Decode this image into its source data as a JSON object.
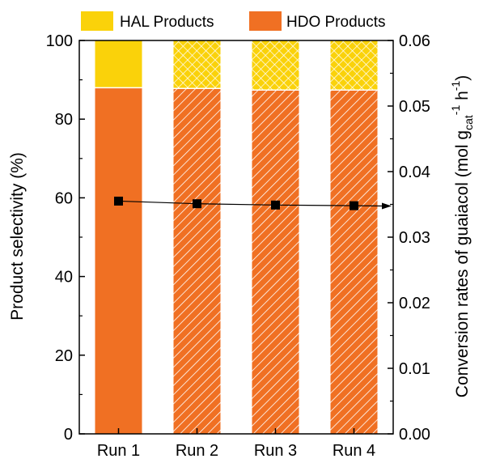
{
  "chart_data": {
    "type": "bar",
    "stacked": true,
    "categories": [
      "Run 1",
      "Run 2",
      "Run 3",
      "Run 4"
    ],
    "series": [
      {
        "name": "HDO Products",
        "values": [
          88,
          87.8,
          87.4,
          87.4
        ],
        "color": "#f07023"
      },
      {
        "name": "HAL Products",
        "values": [
          12,
          12.2,
          12.6,
          12.6
        ],
        "color": "#fad20a"
      }
    ],
    "line_series": {
      "axis": "right",
      "values": [
        0.0355,
        0.0351,
        0.0349,
        0.0348
      ],
      "marker": "square",
      "color": "#000000",
      "arrow_direction": "right"
    },
    "ylabel": "Product selectivity (%)",
    "ylabel2": {
      "prefix": "Conversion rates of guaiacol (mol g",
      "subscript": "cat",
      "superscript1": "-1",
      "middle": " h",
      "superscript2": "-1",
      "suffix": ")"
    },
    "ylim": [
      0,
      100
    ],
    "y2lim": [
      0,
      0.06
    ],
    "yticks": [
      "0",
      "20",
      "40",
      "60",
      "80",
      "100"
    ],
    "y2ticks": [
      "0.00",
      "0.01",
      "0.02",
      "0.03",
      "0.04",
      "0.05",
      "0.06"
    ],
    "legend": {
      "placement": "top",
      "entries": [
        "HAL Products",
        "HDO Products"
      ]
    },
    "bar_patterns": [
      "solid",
      "hatch",
      "hatch",
      "hatch"
    ],
    "grid": false
  }
}
